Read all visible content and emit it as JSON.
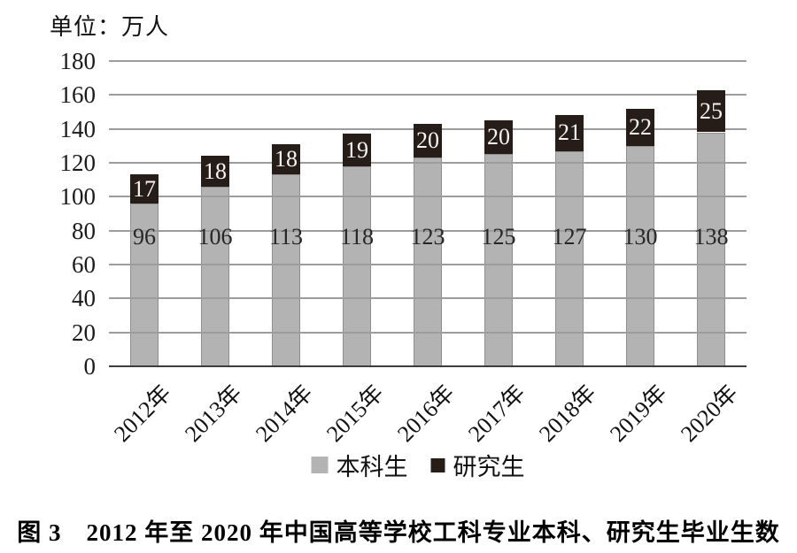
{
  "unit_label": "单位：万人",
  "caption": "图 3　2012 年至 2020 年中国高等学校工科专业本科、研究生毕业生数",
  "colors": {
    "undergraduate_bar": "#b3b3b3",
    "graduate_bar": "#261d19",
    "gridline": "#9c9c9c",
    "axis_line": "#3d3d3d",
    "cap_label_text": "#f7f3f0",
    "bar_label_text": "#262626"
  },
  "chart_data": {
    "type": "bar",
    "stacked": true,
    "title": "",
    "unit": "万人",
    "categories": [
      "2012年",
      "2013年",
      "2014年",
      "2015年",
      "2016年",
      "2017年",
      "2018年",
      "2019年",
      "2020年"
    ],
    "series": [
      {
        "name": "本科生",
        "color": "#b3b3b3",
        "values": [
          96,
          106,
          113,
          118,
          123,
          125,
          127,
          130,
          138
        ]
      },
      {
        "name": "研究生",
        "color": "#261d19",
        "values": [
          17,
          18,
          18,
          19,
          20,
          20,
          21,
          22,
          25
        ]
      }
    ],
    "totals": [
      113,
      124,
      131,
      137,
      143,
      145,
      148,
      152,
      163
    ],
    "ylim": [
      0,
      180
    ],
    "ytick_step": 20,
    "grid": true,
    "legend_position": "bottom",
    "x_label_rotation_deg": -45
  }
}
